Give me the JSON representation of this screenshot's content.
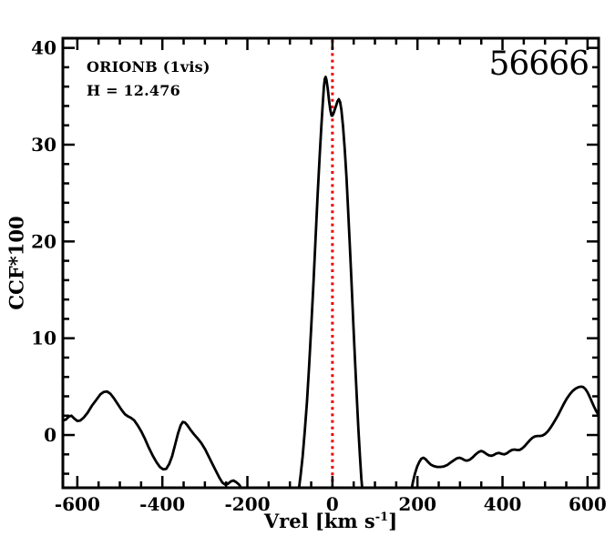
{
  "figure": {
    "annotation_line1": "ORIONB (1vis)",
    "annotation_line2": "H = 12.476",
    "id_number": "56666",
    "ylabel": "CCF*100",
    "xlabel_prefix": "Vrel [km s",
    "xlabel_sup": "-1",
    "xlabel_suffix": "]"
  },
  "colors": {
    "background": "#ffffff",
    "axis": "#000000",
    "curve": "#000000",
    "text": "#000000",
    "reference_line": "#ee0000"
  },
  "chart_data": {
    "type": "line",
    "title": "",
    "xlabel": "Vrel [km s^-1]",
    "ylabel": "CCF*100",
    "annotations": [
      "ORIONB (1vis)",
      "H = 12.476",
      "56666"
    ],
    "xlim": [
      -634,
      626
    ],
    "ylim": [
      -5.45,
      41.0
    ],
    "x_major_ticks": [
      -600,
      -400,
      -200,
      0,
      200,
      400,
      600
    ],
    "x_minor_step": 50,
    "y_major_ticks": [
      0,
      10,
      20,
      30,
      40
    ],
    "y_minor_step": 2,
    "grid": false,
    "legend": false,
    "vline": {
      "x": 0,
      "style": "dotted",
      "color": "#ee0000"
    },
    "series": [
      {
        "name": "CCF",
        "color": "#000000",
        "segments": [
          [
            [
              -634,
              1.5
            ],
            [
              -627,
              1.6
            ],
            [
              -620,
              1.9
            ],
            [
              -614,
              2.0
            ],
            [
              -607,
              1.7
            ],
            [
              -600,
              1.45
            ],
            [
              -593,
              1.5
            ],
            [
              -585,
              1.8
            ],
            [
              -576,
              2.3
            ],
            [
              -566,
              3.0
            ],
            [
              -556,
              3.6
            ],
            [
              -546,
              4.2
            ],
            [
              -538,
              4.45
            ],
            [
              -530,
              4.5
            ],
            [
              -522,
              4.25
            ],
            [
              -514,
              3.8
            ],
            [
              -505,
              3.2
            ],
            [
              -496,
              2.6
            ],
            [
              -488,
              2.15
            ],
            [
              -480,
              1.9
            ],
            [
              -473,
              1.75
            ],
            [
              -466,
              1.5
            ],
            [
              -458,
              1.0
            ],
            [
              -450,
              0.4
            ],
            [
              -441,
              -0.4
            ],
            [
              -432,
              -1.3
            ],
            [
              -423,
              -2.1
            ],
            [
              -414,
              -2.8
            ],
            [
              -406,
              -3.3
            ],
            [
              -398,
              -3.55
            ],
            [
              -391,
              -3.5
            ],
            [
              -384,
              -3.0
            ],
            [
              -377,
              -2.2
            ],
            [
              -370,
              -1.0
            ],
            [
              -363,
              0.2
            ],
            [
              -357,
              1.0
            ],
            [
              -352,
              1.35
            ],
            [
              -347,
              1.3
            ],
            [
              -341,
              1.0
            ],
            [
              -334,
              0.55
            ],
            [
              -326,
              0.1
            ],
            [
              -317,
              -0.35
            ],
            [
              -308,
              -0.85
            ],
            [
              -299,
              -1.5
            ],
            [
              -290,
              -2.3
            ],
            [
              -281,
              -3.1
            ],
            [
              -273,
              -3.8
            ],
            [
              -266,
              -4.4
            ],
            [
              -259,
              -4.9
            ],
            [
              -253,
              -5.1
            ],
            [
              -246,
              -5.05
            ],
            [
              -239,
              -4.8
            ],
            [
              -233,
              -4.7
            ],
            [
              -227,
              -4.85
            ],
            [
              -220,
              -5.1
            ],
            [
              -214,
              -5.5
            ],
            [
              -210,
              -5.9
            ]
          ],
          [
            [
              -80,
              -6
            ],
            [
              -75,
              -4.2
            ],
            [
              -70,
              -2.2
            ],
            [
              -65,
              0.4
            ],
            [
              -60,
              3.4
            ],
            [
              -55,
              7.0
            ],
            [
              -50,
              11.0
            ],
            [
              -45,
              15.4
            ],
            [
              -40,
              20.0
            ],
            [
              -35,
              24.6
            ],
            [
              -30,
              28.9
            ],
            [
              -26,
              31.9
            ],
            [
              -23,
              34.0
            ],
            [
              -20,
              36.0
            ],
            [
              -18,
              36.8
            ],
            [
              -16,
              37.0
            ],
            [
              -14,
              36.7
            ],
            [
              -11,
              35.8
            ],
            [
              -8,
              34.6
            ],
            [
              -5,
              33.6
            ],
            [
              -2,
              33.0
            ],
            [
              0,
              33.0
            ],
            [
              3,
              33.3
            ],
            [
              6,
              33.7
            ],
            [
              9,
              34.1
            ],
            [
              12,
              34.5
            ],
            [
              15,
              34.7
            ],
            [
              18,
              34.4
            ],
            [
              21,
              33.6
            ],
            [
              25,
              31.9
            ],
            [
              29,
              29.5
            ],
            [
              33,
              26.6
            ],
            [
              37,
              23.2
            ],
            [
              41,
              19.5
            ],
            [
              45,
              15.6
            ],
            [
              49,
              11.7
            ],
            [
              53,
              7.8
            ],
            [
              57,
              4.1
            ],
            [
              61,
              0.7
            ],
            [
              65,
              -2.4
            ],
            [
              68,
              -4.5
            ],
            [
              71,
              -6
            ]
          ],
          [
            [
              185,
              -5.9
            ],
            [
              189,
              -4.9
            ],
            [
              194,
              -4.0
            ],
            [
              199,
              -3.3
            ],
            [
              204,
              -2.8
            ],
            [
              209,
              -2.45
            ],
            [
              214,
              -2.35
            ],
            [
              219,
              -2.5
            ],
            [
              225,
              -2.8
            ],
            [
              231,
              -3.05
            ],
            [
              238,
              -3.2
            ],
            [
              246,
              -3.3
            ],
            [
              254,
              -3.3
            ],
            [
              262,
              -3.25
            ],
            [
              270,
              -3.1
            ],
            [
              278,
              -2.85
            ],
            [
              286,
              -2.6
            ],
            [
              293,
              -2.4
            ],
            [
              299,
              -2.35
            ],
            [
              305,
              -2.45
            ],
            [
              311,
              -2.6
            ],
            [
              317,
              -2.65
            ],
            [
              323,
              -2.55
            ],
            [
              330,
              -2.3
            ],
            [
              337,
              -2.0
            ],
            [
              344,
              -1.75
            ],
            [
              350,
              -1.65
            ],
            [
              356,
              -1.75
            ],
            [
              362,
              -1.95
            ],
            [
              368,
              -2.1
            ],
            [
              374,
              -2.15
            ],
            [
              380,
              -2.05
            ],
            [
              386,
              -1.9
            ],
            [
              392,
              -1.85
            ],
            [
              398,
              -1.95
            ],
            [
              404,
              -2.0
            ],
            [
              410,
              -1.9
            ],
            [
              416,
              -1.7
            ],
            [
              422,
              -1.55
            ],
            [
              428,
              -1.5
            ],
            [
              434,
              -1.55
            ],
            [
              440,
              -1.55
            ],
            [
              446,
              -1.4
            ],
            [
              452,
              -1.15
            ],
            [
              458,
              -0.85
            ],
            [
              464,
              -0.55
            ],
            [
              470,
              -0.3
            ],
            [
              476,
              -0.15
            ],
            [
              482,
              -0.1
            ],
            [
              488,
              -0.1
            ],
            [
              494,
              -0.05
            ],
            [
              500,
              0.1
            ],
            [
              506,
              0.35
            ],
            [
              512,
              0.7
            ],
            [
              518,
              1.1
            ],
            [
              524,
              1.55
            ],
            [
              530,
              2.0
            ],
            [
              537,
              2.6
            ],
            [
              544,
              3.2
            ],
            [
              551,
              3.75
            ],
            [
              558,
              4.2
            ],
            [
              565,
              4.55
            ],
            [
              572,
              4.8
            ],
            [
              579,
              4.95
            ],
            [
              585,
              5.0
            ],
            [
              590,
              4.95
            ],
            [
              595,
              4.75
            ],
            [
              600,
              4.4
            ],
            [
              605,
              3.95
            ],
            [
              610,
              3.45
            ],
            [
              615,
              2.95
            ],
            [
              620,
              2.5
            ],
            [
              626,
              2.05
            ]
          ]
        ]
      }
    ]
  }
}
